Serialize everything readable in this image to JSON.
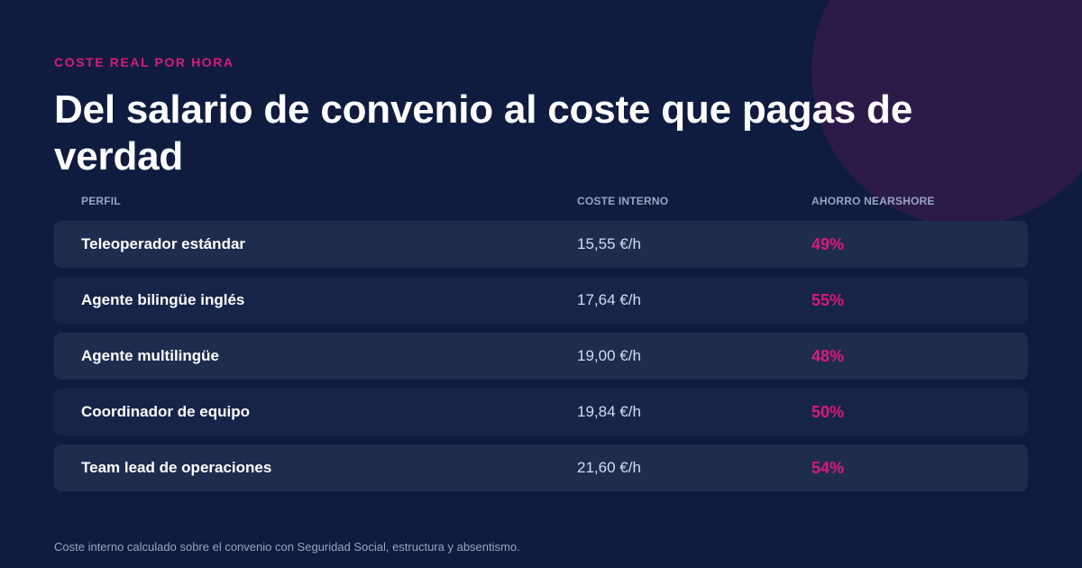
{
  "eyebrow": "COSTE REAL POR HORA",
  "title": "Del salario de convenio al coste que pagas de verdad",
  "table": {
    "headers": {
      "profile": "PERFIL",
      "internal_cost": "COSTE INTERNO",
      "nearshore_saving": "AHORRO NEARSHORE"
    },
    "rows": [
      {
        "profile": "Teleoperador estándar",
        "internal_cost": "15,55 €/h",
        "nearshore_saving": "49%"
      },
      {
        "profile": "Agente bilingüe inglés",
        "internal_cost": "17,64 €/h",
        "nearshore_saving": "55%"
      },
      {
        "profile": "Agente multilingüe",
        "internal_cost": "19,00 €/h",
        "nearshore_saving": "48%"
      },
      {
        "profile": "Coordinador de equipo",
        "internal_cost": "19,84 €/h",
        "nearshore_saving": "50%"
      },
      {
        "profile": "Team lead de operaciones",
        "internal_cost": "21,60 €/h",
        "nearshore_saving": "54%"
      }
    ]
  },
  "footnote": "Coste interno calculado sobre el convenio con Seguridad Social, estructura y absentismo.",
  "colors": {
    "background": "#0f1c3f",
    "accent": "#d81b78",
    "decorative_circle": "#2c1b49"
  }
}
